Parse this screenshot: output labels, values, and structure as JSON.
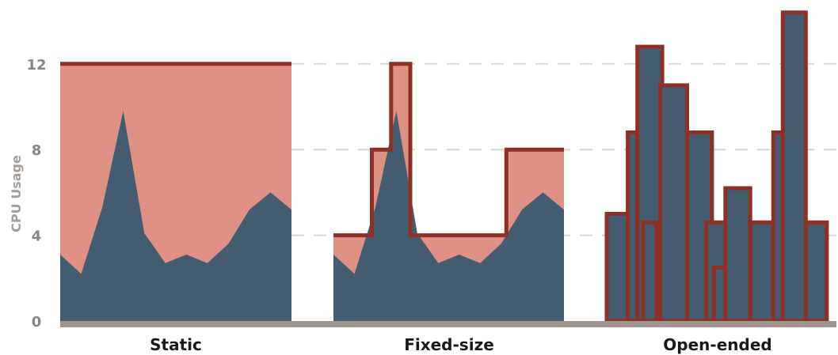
{
  "chart_data": {
    "type": "area",
    "ylabel": "CPU Usage",
    "ylim": [
      0,
      15
    ],
    "yticks": [
      0,
      4,
      8,
      12
    ],
    "grid": "horizontal-dashed",
    "colors": {
      "usage_fill": "#435c6f",
      "capacity_fill": "#e09186",
      "capacity_stroke": "#8f3026",
      "baseline": "#9c9590",
      "grid": "#d6d6d6"
    },
    "usage_series": [
      3.1,
      2.2,
      5.3,
      9.8,
      4.1,
      2.7,
      3.1,
      2.7,
      3.6,
      5.2,
      6.0,
      5.2
    ],
    "panels": [
      {
        "label": "Static",
        "capacity_steps": [
          12,
          12,
          12,
          12,
          12,
          12,
          12,
          12,
          12,
          12,
          12,
          12
        ]
      },
      {
        "label": "Fixed-size",
        "capacity_steps": [
          4,
          4,
          8,
          12,
          4,
          4,
          4,
          4,
          4,
          8,
          8,
          8
        ]
      },
      {
        "label": "Open-ended",
        "bars": [
          {
            "start": 0,
            "end": 1.1,
            "value": 5.0
          },
          {
            "start": 1.1,
            "end": 2.5,
            "value": 8.8
          },
          {
            "start": 1.6,
            "end": 2.9,
            "value": 12.8
          },
          {
            "start": 1.9,
            "end": 2.6,
            "value": 4.6
          },
          {
            "start": 2.8,
            "end": 4.2,
            "value": 11.0
          },
          {
            "start": 4.2,
            "end": 5.5,
            "value": 8.8
          },
          {
            "start": 5.2,
            "end": 6.3,
            "value": 4.6
          },
          {
            "start": 5.6,
            "end": 6.7,
            "value": 2.5
          },
          {
            "start": 6.2,
            "end": 7.5,
            "value": 6.2
          },
          {
            "start": 7.5,
            "end": 8.7,
            "value": 4.6
          },
          {
            "start": 8.7,
            "end": 10.0,
            "value": 8.8
          },
          {
            "start": 9.2,
            "end": 10.4,
            "value": 14.4
          },
          {
            "start": 10.4,
            "end": 11.5,
            "value": 4.6
          }
        ]
      }
    ]
  }
}
